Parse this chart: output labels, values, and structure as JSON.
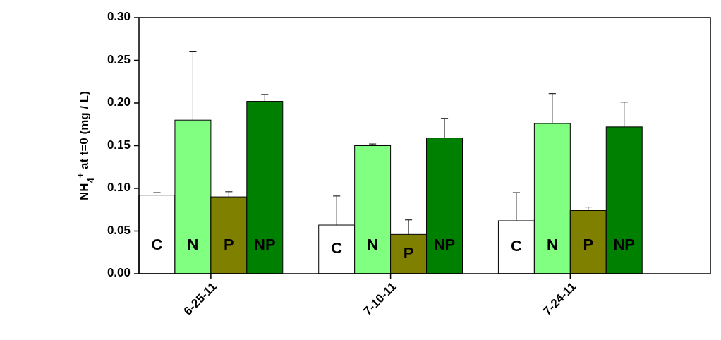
{
  "chart_data": {
    "type": "bar",
    "ylabel": "NH$_{4}$$^{+}$ at t=0 (mg / L)",
    "categories": [
      "6-25-11",
      "7-10-11",
      "7-24-11"
    ],
    "series": [
      {
        "name": "C",
        "color": "#ffffff",
        "values": [
          0.092,
          0.057,
          0.062
        ],
        "errors": [
          [
            0.092,
            0.095
          ],
          [
            0.057,
            0.091
          ],
          [
            0.062,
            0.095
          ]
        ]
      },
      {
        "name": "N",
        "color": "#80ff80",
        "values": [
          0.18,
          0.15,
          0.176
        ],
        "errors": [
          [
            0.18,
            0.26
          ],
          [
            0.15,
            0.152
          ],
          [
            0.176,
            0.211
          ]
        ]
      },
      {
        "name": "P",
        "color": "#808000",
        "values": [
          0.09,
          0.046,
          0.074
        ],
        "errors": [
          [
            0.09,
            0.096
          ],
          [
            0.046,
            0.063
          ],
          [
            0.074,
            0.078
          ]
        ]
      },
      {
        "name": "NP",
        "color": "#008000",
        "values": [
          0.202,
          0.159,
          0.172
        ],
        "errors": [
          [
            0.202,
            0.21
          ],
          [
            0.159,
            0.182
          ],
          [
            0.172,
            0.201
          ]
        ]
      }
    ],
    "ylim": [
      0,
      0.3
    ],
    "yticks": [
      {
        "value": 0,
        "label": "0.00"
      },
      {
        "value": 0.05,
        "label": "0.05"
      },
      {
        "value": 0.1,
        "label": "0.10"
      },
      {
        "value": 0.15,
        "label": "0.15"
      },
      {
        "value": 0.2,
        "label": "0.20"
      },
      {
        "value": 0.25,
        "label": "0.25"
      },
      {
        "value": 0.3,
        "label": "0.30"
      }
    ],
    "legend": false,
    "grid": false
  }
}
